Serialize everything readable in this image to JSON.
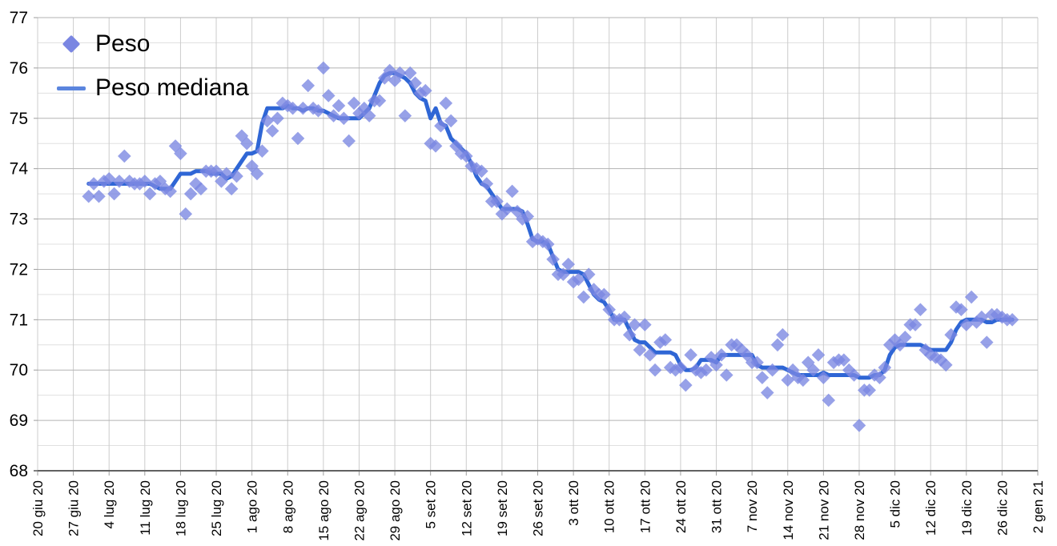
{
  "colors": {
    "scatter": "#7a86e2",
    "scatter_opacity": 0.78,
    "median_line": "#2f66d5",
    "legend_line_sample": "#5b85de",
    "grid_major": "#b3b3b3",
    "grid_minor": "#e0e0e0",
    "grid_vertical": "#cccccc",
    "axis_baseline": "#616161",
    "tick": "#9e9e9e",
    "label_text": "#000000"
  },
  "legend": {
    "items": [
      {
        "label": "Peso",
        "marker": "diamond-icon"
      },
      {
        "label": "Peso mediana",
        "marker": "line-icon"
      }
    ]
  },
  "chart_data": {
    "type": "scatter",
    "title": "",
    "xlabel": "",
    "ylabel": "",
    "ylim": [
      68,
      77
    ],
    "y_major_step": 1,
    "y_minor_step": 0.5,
    "grid": true,
    "legend_position": "top-left-inside",
    "y_tick_labels": [
      "68",
      "69",
      "70",
      "71",
      "72",
      "73",
      "74",
      "75",
      "76",
      "77"
    ],
    "x_tick_labels": [
      "20 giu 20",
      "27 giu 20",
      "4 lug 20",
      "11 lug 20",
      "18 lug 20",
      "25 lug 20",
      "1 ago 20",
      "8 ago 20",
      "15 ago 20",
      "22 ago 20",
      "29 ago 20",
      "5 set 20",
      "12 set 20",
      "19 set 20",
      "26 set 20",
      "3 ott 20",
      "10 ott 20",
      "17 ott 20",
      "24 ott 20",
      "31 ott 20",
      "7 nov 20",
      "14 nov 20",
      "21 nov 20",
      "28 nov 20",
      "5 dic 20",
      "12 dic 20",
      "19 dic 20",
      "26 dic 20",
      "2 gen 21"
    ],
    "x_tick_interval_days": 7,
    "data_start_day_offset": 10,
    "points_interval_days": 1,
    "series": [
      {
        "name": "Peso",
        "type": "scatter",
        "marker": "diamond",
        "values": [
          73.45,
          73.7,
          73.45,
          73.75,
          73.8,
          73.5,
          73.75,
          74.25,
          73.75,
          73.7,
          73.7,
          73.75,
          73.5,
          73.7,
          73.75,
          73.6,
          73.55,
          74.45,
          74.3,
          73.1,
          73.5,
          73.7,
          73.6,
          73.95,
          73.95,
          73.95,
          73.75,
          73.9,
          73.6,
          73.85,
          74.65,
          74.5,
          74.05,
          73.9,
          74.35,
          74.95,
          74.75,
          75.0,
          75.3,
          75.25,
          75.2,
          74.6,
          75.2,
          75.65,
          75.2,
          75.15,
          76.0,
          75.45,
          75.05,
          75.25,
          75.0,
          74.55,
          75.3,
          75.1,
          75.2,
          75.05,
          75.35,
          75.35,
          75.8,
          75.95,
          75.75,
          75.9,
          75.05,
          75.9,
          75.7,
          75.5,
          75.55,
          74.5,
          74.45,
          74.85,
          75.3,
          74.95,
          74.45,
          74.3,
          74.25,
          74.05,
          74.0,
          73.95,
          73.7,
          73.35,
          73.35,
          73.1,
          73.2,
          73.55,
          73.15,
          73.0,
          73.05,
          72.55,
          72.6,
          72.55,
          72.5,
          72.2,
          71.9,
          71.9,
          72.1,
          71.75,
          71.8,
          71.45,
          71.9,
          71.6,
          71.5,
          71.5,
          71.2,
          71.0,
          71.0,
          71.05,
          70.7,
          70.9,
          70.4,
          70.9,
          70.3,
          70.0,
          70.55,
          70.6,
          70.05,
          70.0,
          70.05,
          69.7,
          70.3,
          70.0,
          69.95,
          70.0,
          70.25,
          70.1,
          70.3,
          69.9,
          70.5,
          70.5,
          70.4,
          70.3,
          70.15,
          70.15,
          69.85,
          69.55,
          70.0,
          70.5,
          70.7,
          69.8,
          70.0,
          69.85,
          69.8,
          70.15,
          70.0,
          70.3,
          69.85,
          69.4,
          70.15,
          70.2,
          70.2,
          70.0,
          69.9,
          68.9,
          69.6,
          69.6,
          69.9,
          69.85,
          70.05,
          70.5,
          70.6,
          70.5,
          70.65,
          70.9,
          70.9,
          71.2,
          70.4,
          70.3,
          70.25,
          70.2,
          70.1,
          70.7,
          71.25,
          71.2,
          70.9,
          71.45,
          70.95,
          71.05,
          70.55,
          71.1,
          71.1,
          71.05,
          71.0,
          71.0
        ]
      },
      {
        "name": "Peso mediana",
        "type": "line",
        "values": [
          73.7,
          73.7,
          73.7,
          73.7,
          73.7,
          73.7,
          73.7,
          73.7,
          73.7,
          73.7,
          73.7,
          73.7,
          73.7,
          73.65,
          73.6,
          73.6,
          73.6,
          73.75,
          73.9,
          73.9,
          73.9,
          73.95,
          73.95,
          73.95,
          73.9,
          73.9,
          73.9,
          73.8,
          73.85,
          74.0,
          74.15,
          74.3,
          74.3,
          74.35,
          74.9,
          75.2,
          75.2,
          75.2,
          75.2,
          75.25,
          75.2,
          75.2,
          75.15,
          75.2,
          75.2,
          75.15,
          75.15,
          75.1,
          75.05,
          75.0,
          75.0,
          75.0,
          75.0,
          75.0,
          75.1,
          75.2,
          75.45,
          75.7,
          75.85,
          75.9,
          75.9,
          75.85,
          75.8,
          75.7,
          75.5,
          75.4,
          75.35,
          75.0,
          75.2,
          74.9,
          74.85,
          74.6,
          74.5,
          74.4,
          74.3,
          74.1,
          73.85,
          73.7,
          73.65,
          73.5,
          73.35,
          73.2,
          73.2,
          73.2,
          73.2,
          73.15,
          72.9,
          72.6,
          72.55,
          72.55,
          72.5,
          72.25,
          72.0,
          71.95,
          71.95,
          71.95,
          71.95,
          71.9,
          71.7,
          71.5,
          71.4,
          71.35,
          71.2,
          71.0,
          71.0,
          71.0,
          70.8,
          70.6,
          70.55,
          70.55,
          70.45,
          70.35,
          70.35,
          70.35,
          70.35,
          70.3,
          70.1,
          70.0,
          70.0,
          70.05,
          70.2,
          70.2,
          70.2,
          70.15,
          70.3,
          70.3,
          70.3,
          70.3,
          70.3,
          70.3,
          70.3,
          70.1,
          70.05,
          70.05,
          70.05,
          70.05,
          70.05,
          70.0,
          69.95,
          69.9,
          69.9,
          69.9,
          69.9,
          69.9,
          69.95,
          69.9,
          69.9,
          69.9,
          69.9,
          69.9,
          69.9,
          69.85,
          69.85,
          69.85,
          69.9,
          69.9,
          70.0,
          70.3,
          70.45,
          70.5,
          70.5,
          70.5,
          70.5,
          70.5,
          70.45,
          70.4,
          70.4,
          70.4,
          70.4,
          70.55,
          70.8,
          70.95,
          71.0,
          71.0,
          71.0,
          71.0,
          70.95,
          70.95,
          71.0,
          71.0,
          71.0,
          71.0
        ]
      }
    ]
  }
}
